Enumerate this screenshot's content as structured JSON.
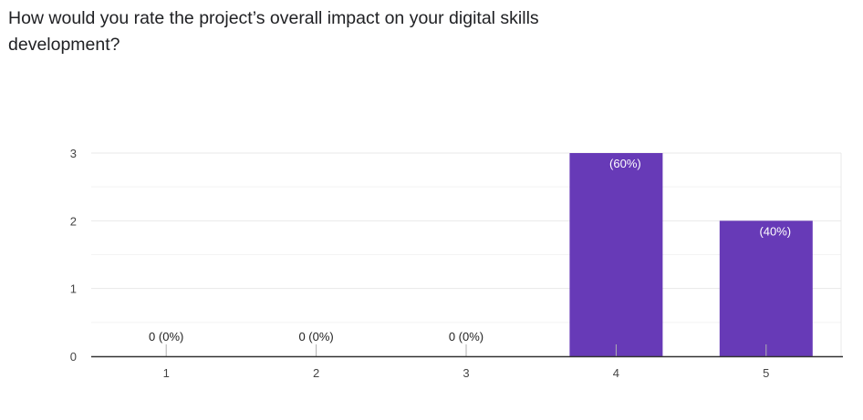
{
  "question": {
    "title": "How would you rate the project’s overall impact on your digital skills development?"
  },
  "chart_data": {
    "type": "bar",
    "categories": [
      "1",
      "2",
      "3",
      "4",
      "5"
    ],
    "values": [
      0,
      0,
      0,
      3,
      2
    ],
    "data_labels": [
      "0 (0%)",
      "0 (0%)",
      "0 (0%)",
      "(60%)",
      "(40%)"
    ],
    "ylim": [
      0,
      3
    ],
    "yticks": [
      "0",
      "1",
      "2",
      "3"
    ],
    "grid": true,
    "bar_color": "#673ab7",
    "title": "",
    "xlabel": "",
    "ylabel": ""
  }
}
